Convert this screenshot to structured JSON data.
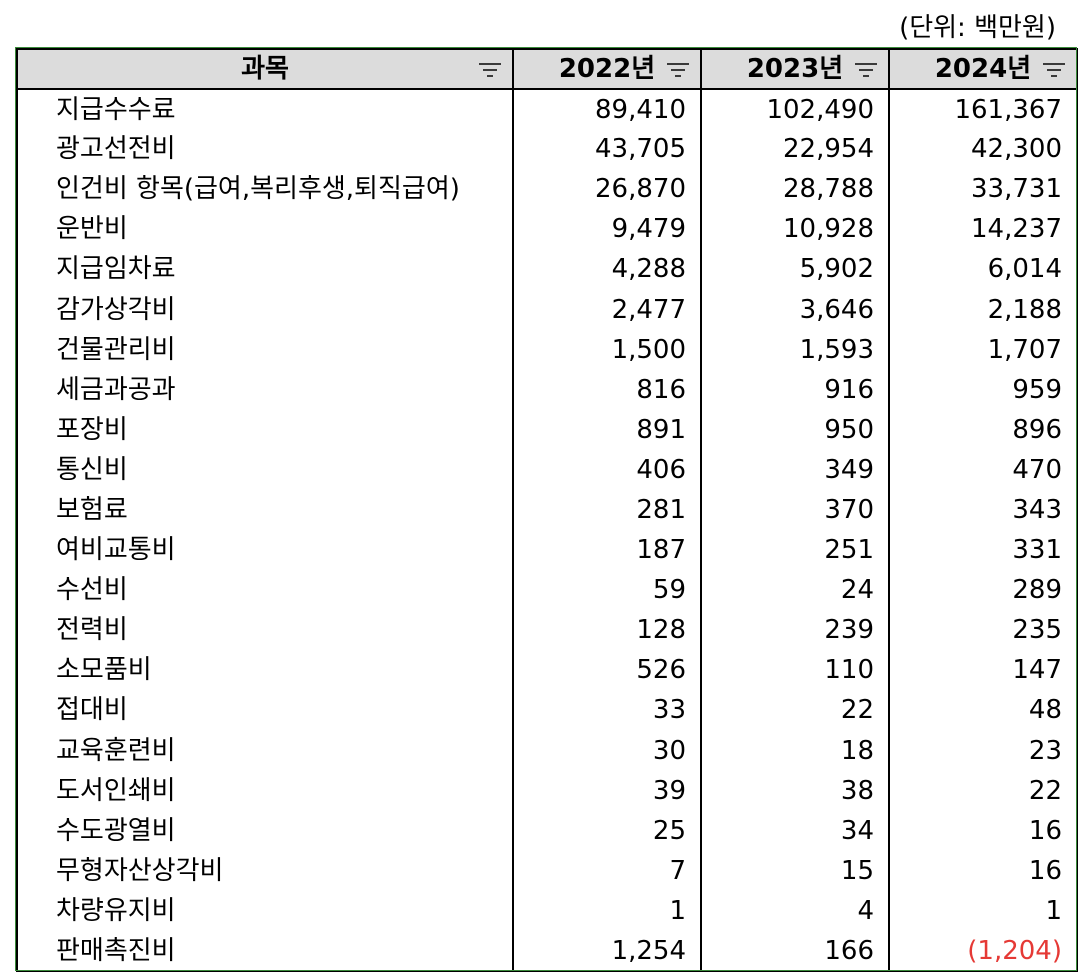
{
  "unit_note": "(단위: 백만원)",
  "columns": {
    "item": "과목",
    "y2022": "2022년",
    "y2023": "2023년",
    "y2024": "2024년"
  },
  "negative_color": "#e53935",
  "rows": [
    {
      "item": "지급수수료",
      "y2022": "89,410",
      "y2023": "102,490",
      "y2024": "161,367"
    },
    {
      "item": "광고선전비",
      "y2022": "43,705",
      "y2023": "22,954",
      "y2024": "42,300"
    },
    {
      "item": "인건비 항목(급여,복리후생,퇴직급여)",
      "y2022": "26,870",
      "y2023": "28,788",
      "y2024": "33,731"
    },
    {
      "item": "운반비",
      "y2022": "9,479",
      "y2023": "10,928",
      "y2024": "14,237"
    },
    {
      "item": "지급임차료",
      "y2022": "4,288",
      "y2023": "5,902",
      "y2024": "6,014"
    },
    {
      "item": "감가상각비",
      "y2022": "2,477",
      "y2023": "3,646",
      "y2024": "2,188"
    },
    {
      "item": "건물관리비",
      "y2022": "1,500",
      "y2023": "1,593",
      "y2024": "1,707"
    },
    {
      "item": "세금과공과",
      "y2022": "816",
      "y2023": "916",
      "y2024": "959"
    },
    {
      "item": "포장비",
      "y2022": "891",
      "y2023": "950",
      "y2024": "896"
    },
    {
      "item": "통신비",
      "y2022": "406",
      "y2023": "349",
      "y2024": "470"
    },
    {
      "item": "보험료",
      "y2022": "281",
      "y2023": "370",
      "y2024": "343"
    },
    {
      "item": "여비교통비",
      "y2022": "187",
      "y2023": "251",
      "y2024": "331"
    },
    {
      "item": "수선비",
      "y2022": "59",
      "y2023": "24",
      "y2024": "289"
    },
    {
      "item": "전력비",
      "y2022": "128",
      "y2023": "239",
      "y2024": "235"
    },
    {
      "item": "소모품비",
      "y2022": "526",
      "y2023": "110",
      "y2024": "147"
    },
    {
      "item": "접대비",
      "y2022": "33",
      "y2023": "22",
      "y2024": "48"
    },
    {
      "item": "교육훈련비",
      "y2022": "30",
      "y2023": "18",
      "y2024": "23"
    },
    {
      "item": "도서인쇄비",
      "y2022": "39",
      "y2023": "38",
      "y2024": "22"
    },
    {
      "item": "수도광열비",
      "y2022": "25",
      "y2023": "34",
      "y2024": "16"
    },
    {
      "item": "무형자산상각비",
      "y2022": "7",
      "y2023": "15",
      "y2024": "16"
    },
    {
      "item": "차량유지비",
      "y2022": "1",
      "y2023": "4",
      "y2024": "1"
    },
    {
      "item": "판매촉진비",
      "y2022": "1,254",
      "y2023": "166",
      "y2024": "(1,204)"
    }
  ]
}
